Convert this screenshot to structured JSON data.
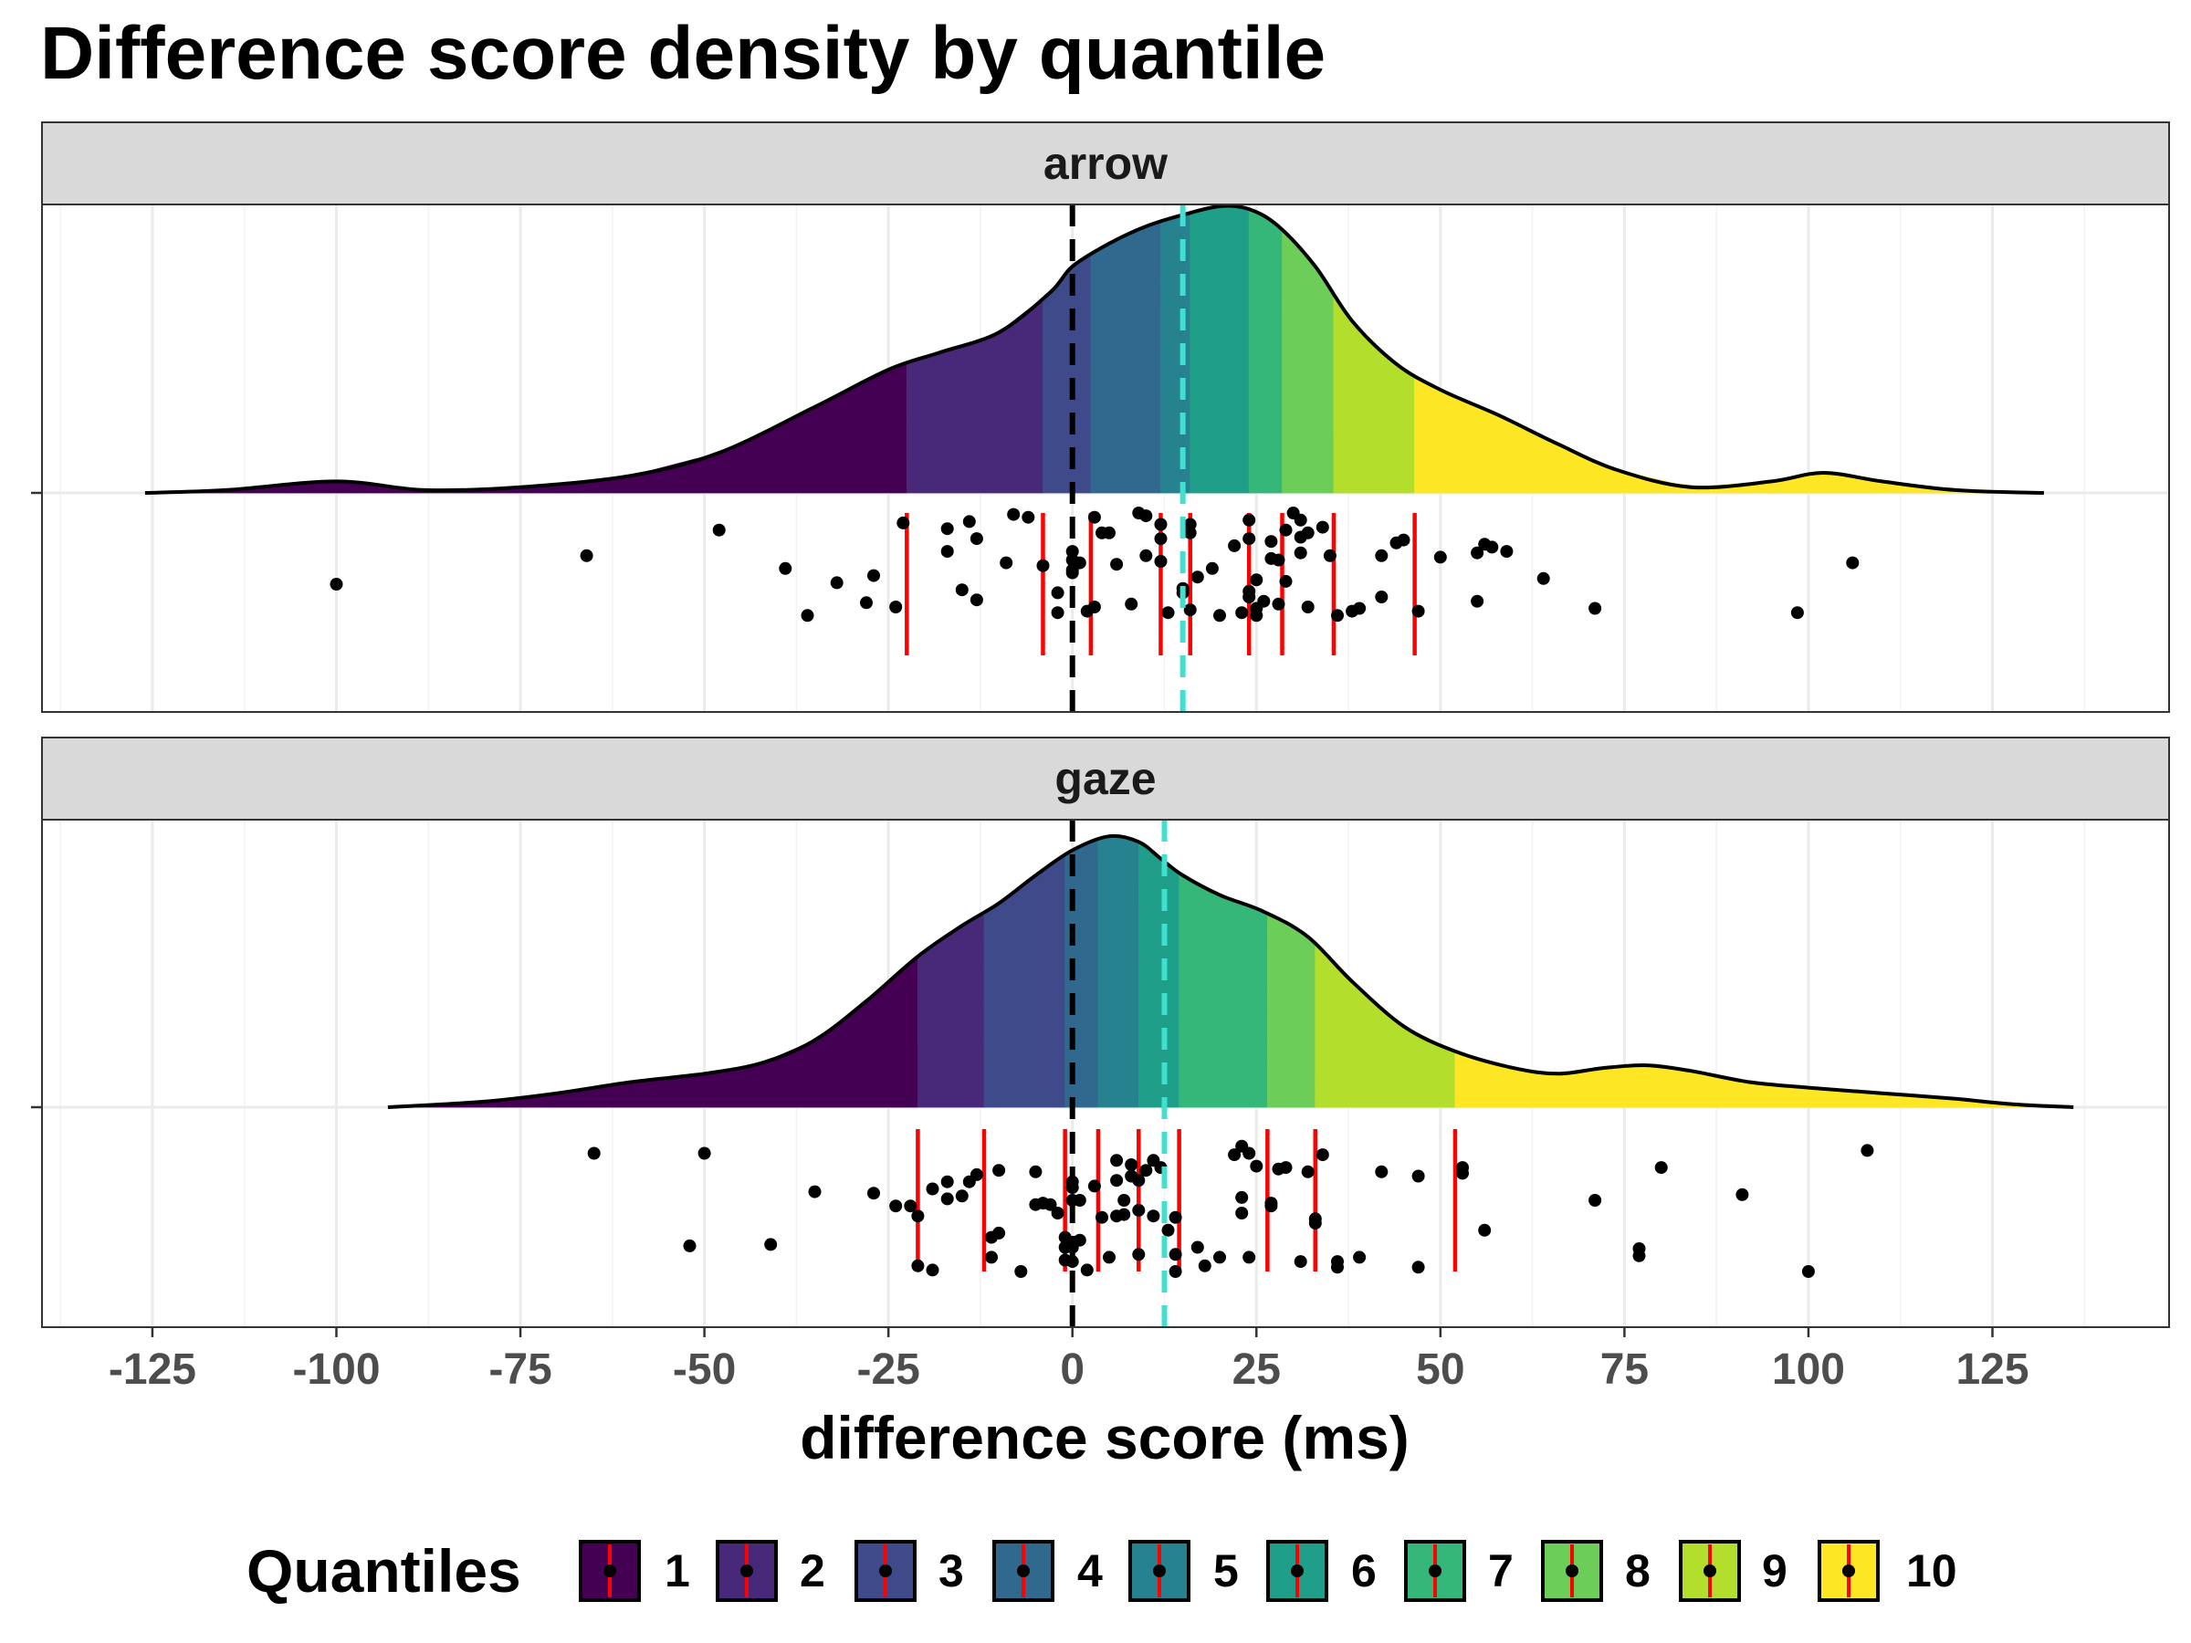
{
  "chart_data": {
    "type": "density",
    "title": "Difference score density by quantile",
    "xlabel": "difference score (ms)",
    "x_ticks": [
      -125,
      -100,
      -75,
      -50,
      -25,
      0,
      25,
      50,
      75,
      100,
      125
    ],
    "xlim": [
      -140,
      149
    ],
    "grid": true,
    "legend": {
      "title": "Quantiles",
      "position": "bottom",
      "labels": [
        "1",
        "2",
        "3",
        "4",
        "5",
        "6",
        "7",
        "8",
        "9",
        "10"
      ]
    },
    "quantile_colors": [
      "#440154",
      "#482878",
      "#3E4A89",
      "#31688E",
      "#26828E",
      "#1F9E89",
      "#35B779",
      "#6DCD59",
      "#B4DE2C",
      "#FDE725"
    ],
    "reference_lines": {
      "zero": 0,
      "zero_color": "#000000",
      "mean_color": "#40E0D0",
      "quantile_line_color": "#FF0000"
    },
    "panels": [
      {
        "label": "arrow",
        "mean": 15,
        "quantile_boundaries": [
          -22.5,
          -4,
          2.5,
          12,
          16,
          24,
          28.5,
          35.5,
          46.5
        ],
        "density_curve": [
          [
            -126,
            0.0
          ],
          [
            -115,
            0.01
          ],
          [
            -100,
            0.04
          ],
          [
            -88,
            0.01
          ],
          [
            -75,
            0.02
          ],
          [
            -60,
            0.06
          ],
          [
            -48,
            0.14
          ],
          [
            -35,
            0.3
          ],
          [
            -25,
            0.43
          ],
          [
            -18,
            0.49
          ],
          [
            -10,
            0.56
          ],
          [
            -3,
            0.7
          ],
          [
            0,
            0.79
          ],
          [
            5,
            0.87
          ],
          [
            10,
            0.93
          ],
          [
            15,
            0.97
          ],
          [
            20,
            1.0
          ],
          [
            24,
            0.99
          ],
          [
            28,
            0.93
          ],
          [
            33,
            0.79
          ],
          [
            38,
            0.6
          ],
          [
            44,
            0.45
          ],
          [
            50,
            0.36
          ],
          [
            58,
            0.27
          ],
          [
            66,
            0.17
          ],
          [
            74,
            0.08
          ],
          [
            84,
            0.02
          ],
          [
            95,
            0.04
          ],
          [
            102,
            0.07
          ],
          [
            110,
            0.04
          ],
          [
            120,
            0.01
          ],
          [
            132,
            0.0
          ]
        ],
        "points": [
          [
            -100,
            0.5
          ],
          [
            -66,
            0.3
          ],
          [
            -48,
            0.12
          ],
          [
            -39,
            0.39
          ],
          [
            -36,
            0.72
          ],
          [
            -32,
            0.49
          ],
          [
            -28,
            0.63
          ],
          [
            -27,
            0.44
          ],
          [
            -24,
            0.66
          ],
          [
            -23,
            0.07
          ],
          [
            -17,
            0.11
          ],
          [
            -17,
            0.27
          ],
          [
            -15,
            0.54
          ],
          [
            -14,
            0.06
          ],
          [
            -13,
            0.18
          ],
          [
            -13,
            0.61
          ],
          [
            -9,
            0.35
          ],
          [
            -8,
            0.01
          ],
          [
            -6,
            0.03
          ],
          [
            -4,
            0.37
          ],
          [
            -2,
            0.56
          ],
          [
            -2,
            0.7
          ],
          [
            0,
            0.27
          ],
          [
            0,
            0.33
          ],
          [
            0,
            0.4
          ],
          [
            0,
            0.42
          ],
          [
            1,
            0.35
          ],
          [
            2,
            0.69
          ],
          [
            3,
            0.03
          ],
          [
            3,
            0.66
          ],
          [
            4,
            0.14
          ],
          [
            5,
            0.14
          ],
          [
            6,
            0.36
          ],
          [
            8,
            0.64
          ],
          [
            9,
            0.0
          ],
          [
            10,
            0.02
          ],
          [
            10,
            0.3
          ],
          [
            12,
            0.18
          ],
          [
            12,
            0.08
          ],
          [
            12,
            0.34
          ],
          [
            13,
            0.7
          ],
          [
            15,
            0.53
          ],
          [
            15,
            0.56
          ],
          [
            16,
            0.08
          ],
          [
            16,
            0.14
          ],
          [
            16,
            0.68
          ],
          [
            17,
            0.45
          ],
          [
            19,
            0.39
          ],
          [
            20,
            0.72
          ],
          [
            22,
            0.23
          ],
          [
            23,
            0.7
          ],
          [
            24,
            0.05
          ],
          [
            24,
            0.55
          ],
          [
            24,
            0.59
          ],
          [
            24,
            0.18
          ],
          [
            25,
            0.47
          ],
          [
            25,
            0.67
          ],
          [
            25,
            0.72
          ],
          [
            26,
            0.62
          ],
          [
            27,
            0.32
          ],
          [
            27,
            0.2
          ],
          [
            28,
            0.33
          ],
          [
            28,
            0.64
          ],
          [
            29,
            0.12
          ],
          [
            29,
            0.48
          ],
          [
            30,
            0.0
          ],
          [
            31,
            0.05
          ],
          [
            31,
            0.17
          ],
          [
            31,
            0.28
          ],
          [
            32,
            0.66
          ],
          [
            32,
            0.14
          ],
          [
            34,
            0.1
          ],
          [
            35,
            0.3
          ],
          [
            36,
            0.72
          ],
          [
            38,
            0.69
          ],
          [
            39,
            0.67
          ],
          [
            42,
            0.3
          ],
          [
            42,
            0.59
          ],
          [
            44,
            0.21
          ],
          [
            45,
            0.19
          ],
          [
            47,
            0.69
          ],
          [
            50,
            0.31
          ],
          [
            55,
            0.62
          ],
          [
            55,
            0.28
          ],
          [
            56,
            0.22
          ],
          [
            57,
            0.24
          ],
          [
            59,
            0.27
          ],
          [
            64,
            0.46
          ],
          [
            71,
            0.67
          ],
          [
            98.5,
            0.7
          ],
          [
            106,
            0.35
          ]
        ]
      },
      {
        "label": "gaze",
        "mean": 12.5,
        "quantile_boundaries": [
          -21,
          -12,
          -1,
          3.5,
          9,
          14.5,
          26.5,
          33,
          52
        ],
        "density_curve": [
          [
            -93,
            0.0
          ],
          [
            -80,
            0.02
          ],
          [
            -70,
            0.05
          ],
          [
            -60,
            0.09
          ],
          [
            -50,
            0.12
          ],
          [
            -42,
            0.16
          ],
          [
            -35,
            0.24
          ],
          [
            -28,
            0.38
          ],
          [
            -21,
            0.54
          ],
          [
            -15,
            0.65
          ],
          [
            -10,
            0.73
          ],
          [
            -5,
            0.83
          ],
          [
            0,
            0.92
          ],
          [
            5,
            0.97
          ],
          [
            9,
            0.95
          ],
          [
            12,
            0.89
          ],
          [
            15,
            0.83
          ],
          [
            20,
            0.76
          ],
          [
            26,
            0.7
          ],
          [
            32,
            0.61
          ],
          [
            38,
            0.45
          ],
          [
            45,
            0.29
          ],
          [
            52,
            0.2
          ],
          [
            60,
            0.14
          ],
          [
            66,
            0.12
          ],
          [
            72,
            0.14
          ],
          [
            78,
            0.15
          ],
          [
            84,
            0.13
          ],
          [
            92,
            0.09
          ],
          [
            100,
            0.07
          ],
          [
            110,
            0.05
          ],
          [
            120,
            0.03
          ],
          [
            128,
            0.01
          ],
          [
            136,
            0.0
          ]
        ],
        "points": [
          [
            -65,
            0.17
          ],
          [
            -52,
            0.82
          ],
          [
            -50,
            0.17
          ],
          [
            -41,
            0.81
          ],
          [
            -35,
            0.44
          ],
          [
            -27,
            0.45
          ],
          [
            -24,
            0.54
          ],
          [
            -22,
            0.54
          ],
          [
            -21,
            0.61
          ],
          [
            -21,
            0.96
          ],
          [
            -19,
            0.42
          ],
          [
            -19,
            0.99
          ],
          [
            -17,
            0.37
          ],
          [
            -17,
            0.49
          ],
          [
            -15,
            0.47
          ],
          [
            -14,
            0.37
          ],
          [
            -13,
            0.32
          ],
          [
            -11,
            0.9
          ],
          [
            -11,
            0.76
          ],
          [
            -10,
            0.73
          ],
          [
            -10,
            0.29
          ],
          [
            -7,
            1.0
          ],
          [
            -5,
            0.3
          ],
          [
            -5,
            0.53
          ],
          [
            -4,
            0.52
          ],
          [
            -3,
            0.53
          ],
          [
            -2,
            0.59
          ],
          [
            -1,
            0.76
          ],
          [
            -1,
            0.83
          ],
          [
            -1,
            0.92
          ],
          [
            0,
            0.41
          ],
          [
            0,
            0.5
          ],
          [
            0,
            0.83
          ],
          [
            0,
            0.93
          ],
          [
            0,
            0.37
          ],
          [
            1,
            0.5
          ],
          [
            1,
            0.78
          ],
          [
            2,
            0.99
          ],
          [
            3,
            0.4
          ],
          [
            4,
            0.62
          ],
          [
            5,
            0.9
          ],
          [
            6,
            0.22
          ],
          [
            6,
            0.61
          ],
          [
            6,
            0.36
          ],
          [
            7,
            0.5
          ],
          [
            7,
            0.6
          ],
          [
            8,
            0.25
          ],
          [
            8,
            0.33
          ],
          [
            9,
            0.36
          ],
          [
            9,
            0.57
          ],
          [
            9,
            0.88
          ],
          [
            10,
            0.29
          ],
          [
            11,
            0.61
          ],
          [
            11,
            0.22
          ],
          [
            12,
            0.27
          ],
          [
            13,
            0.71
          ],
          [
            14,
            0.62
          ],
          [
            14,
            0.88
          ],
          [
            14,
            1.0
          ],
          [
            17,
            0.83
          ],
          [
            18,
            0.96
          ],
          [
            20,
            0.9
          ],
          [
            22,
            0.18
          ],
          [
            23,
            0.12
          ],
          [
            23,
            0.48
          ],
          [
            23,
            0.59
          ],
          [
            24,
            0.9
          ],
          [
            24,
            0.17
          ],
          [
            25,
            0.26
          ],
          [
            27,
            0.54
          ],
          [
            27,
            0.52
          ],
          [
            28,
            0.28
          ],
          [
            29,
            0.27
          ],
          [
            31,
            0.93
          ],
          [
            32,
            0.3
          ],
          [
            33,
            0.66
          ],
          [
            33,
            0.63
          ],
          [
            34,
            0.18
          ],
          [
            36,
            0.93
          ],
          [
            36,
            0.97
          ],
          [
            39,
            0.9
          ],
          [
            42,
            0.3
          ],
          [
            47,
            0.33
          ],
          [
            47,
            0.97
          ],
          [
            53,
            0.27
          ],
          [
            53,
            0.31
          ],
          [
            56,
            0.71
          ],
          [
            71,
            0.5
          ],
          [
            77,
            0.84
          ],
          [
            77,
            0.89
          ],
          [
            80,
            0.27
          ],
          [
            91,
            0.46
          ],
          [
            100,
            1.0
          ],
          [
            108,
            0.15
          ]
        ]
      }
    ]
  }
}
